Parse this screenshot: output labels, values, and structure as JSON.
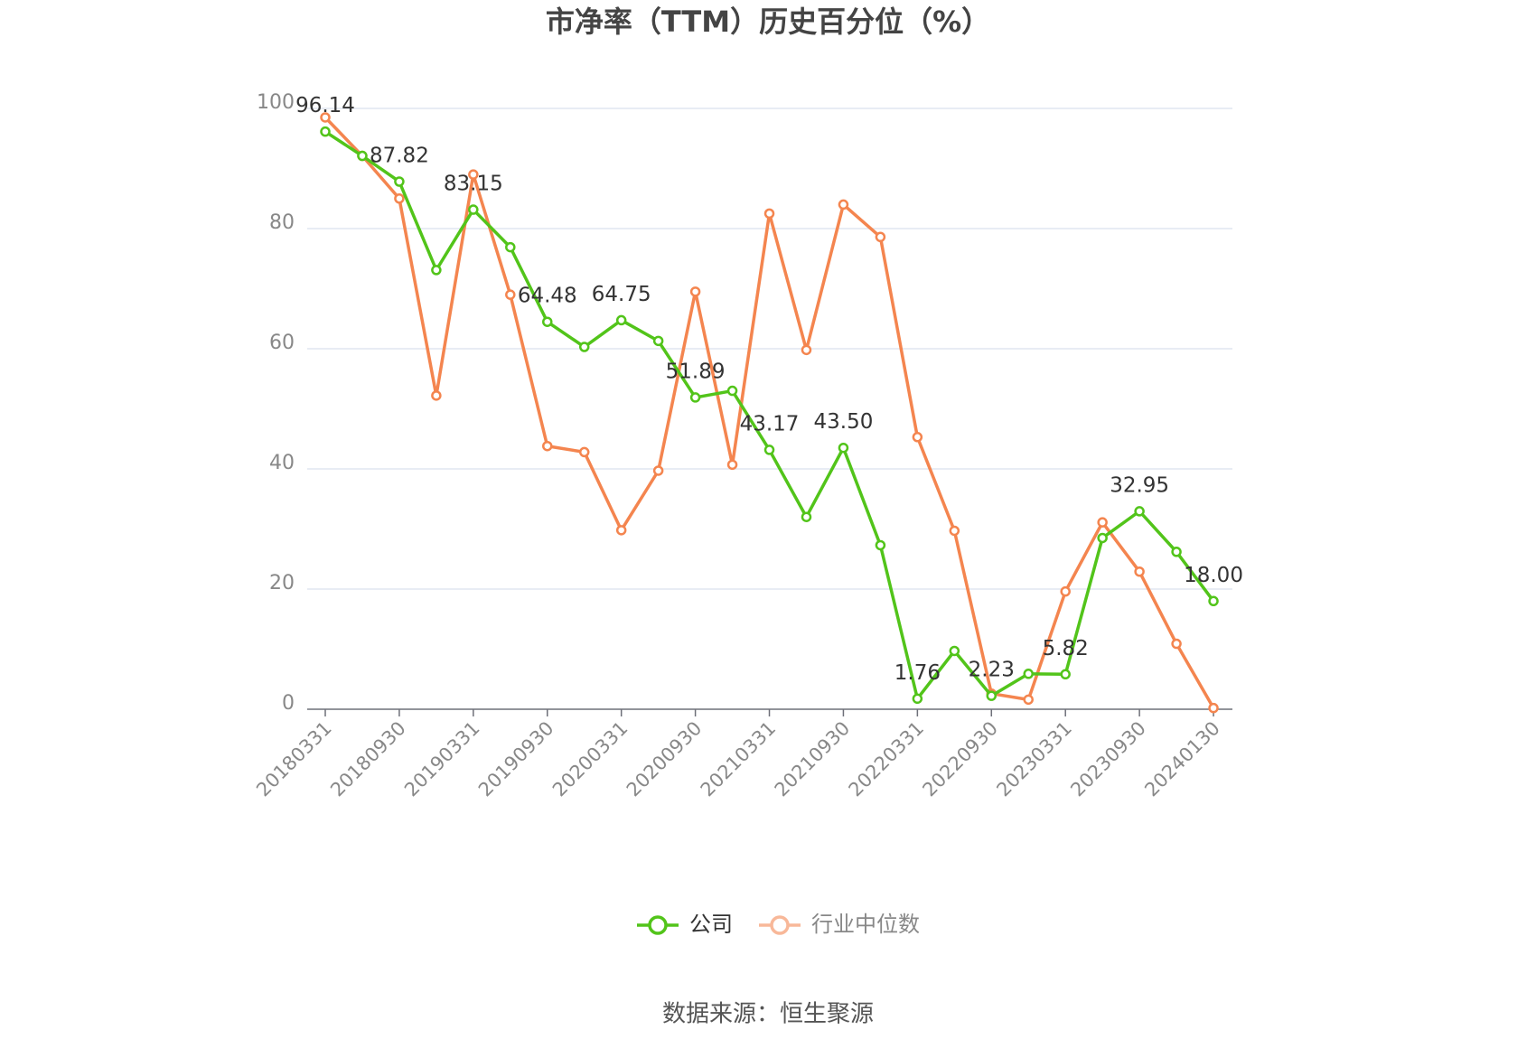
{
  "chart_data": {
    "type": "line",
    "title": "市净率（TTM）历史百分位（%）",
    "source": "数据来源：恒生聚源",
    "categories": [
      "20180331",
      null,
      "20180930",
      null,
      "20190331",
      null,
      "20190930",
      null,
      "20200331",
      null,
      "20200930",
      null,
      "20210331",
      null,
      "20210930",
      null,
      "20220331",
      null,
      "20220930",
      null,
      "20230331",
      null,
      "20230930",
      null,
      "20240130"
    ],
    "series": [
      {
        "name": "公司",
        "color": "#52c41a",
        "values": [
          96.14,
          92.1,
          87.82,
          73.1,
          83.15,
          76.9,
          64.48,
          60.3,
          64.75,
          61.3,
          51.89,
          53.0,
          43.17,
          32.0,
          43.5,
          27.3,
          1.76,
          9.7,
          2.23,
          5.9,
          5.82,
          28.5,
          32.95,
          26.2,
          18.0
        ],
        "value_labels": [
          "96.14",
          null,
          "87.82",
          null,
          "83.15",
          null,
          "64.48",
          null,
          "64.75",
          null,
          "51.89",
          null,
          "43.17",
          null,
          "43.50",
          null,
          "1.76",
          null,
          "2.23",
          null,
          "5.82",
          null,
          "32.95",
          null,
          "18.00"
        ]
      },
      {
        "name": "行业中位数",
        "color": "#f4854f",
        "values": [
          98.5,
          92.1,
          85.0,
          52.2,
          89.0,
          69.0,
          43.8,
          42.8,
          29.8,
          39.7,
          69.5,
          40.7,
          82.5,
          59.8,
          84.0,
          78.6,
          45.3,
          29.7,
          2.6,
          1.6,
          19.6,
          31.1,
          22.9,
          10.9,
          0.2
        ]
      }
    ],
    "ylim": [
      0,
      100
    ],
    "yticks": [
      0,
      20,
      40,
      60,
      80,
      100
    ],
    "grid": true
  }
}
